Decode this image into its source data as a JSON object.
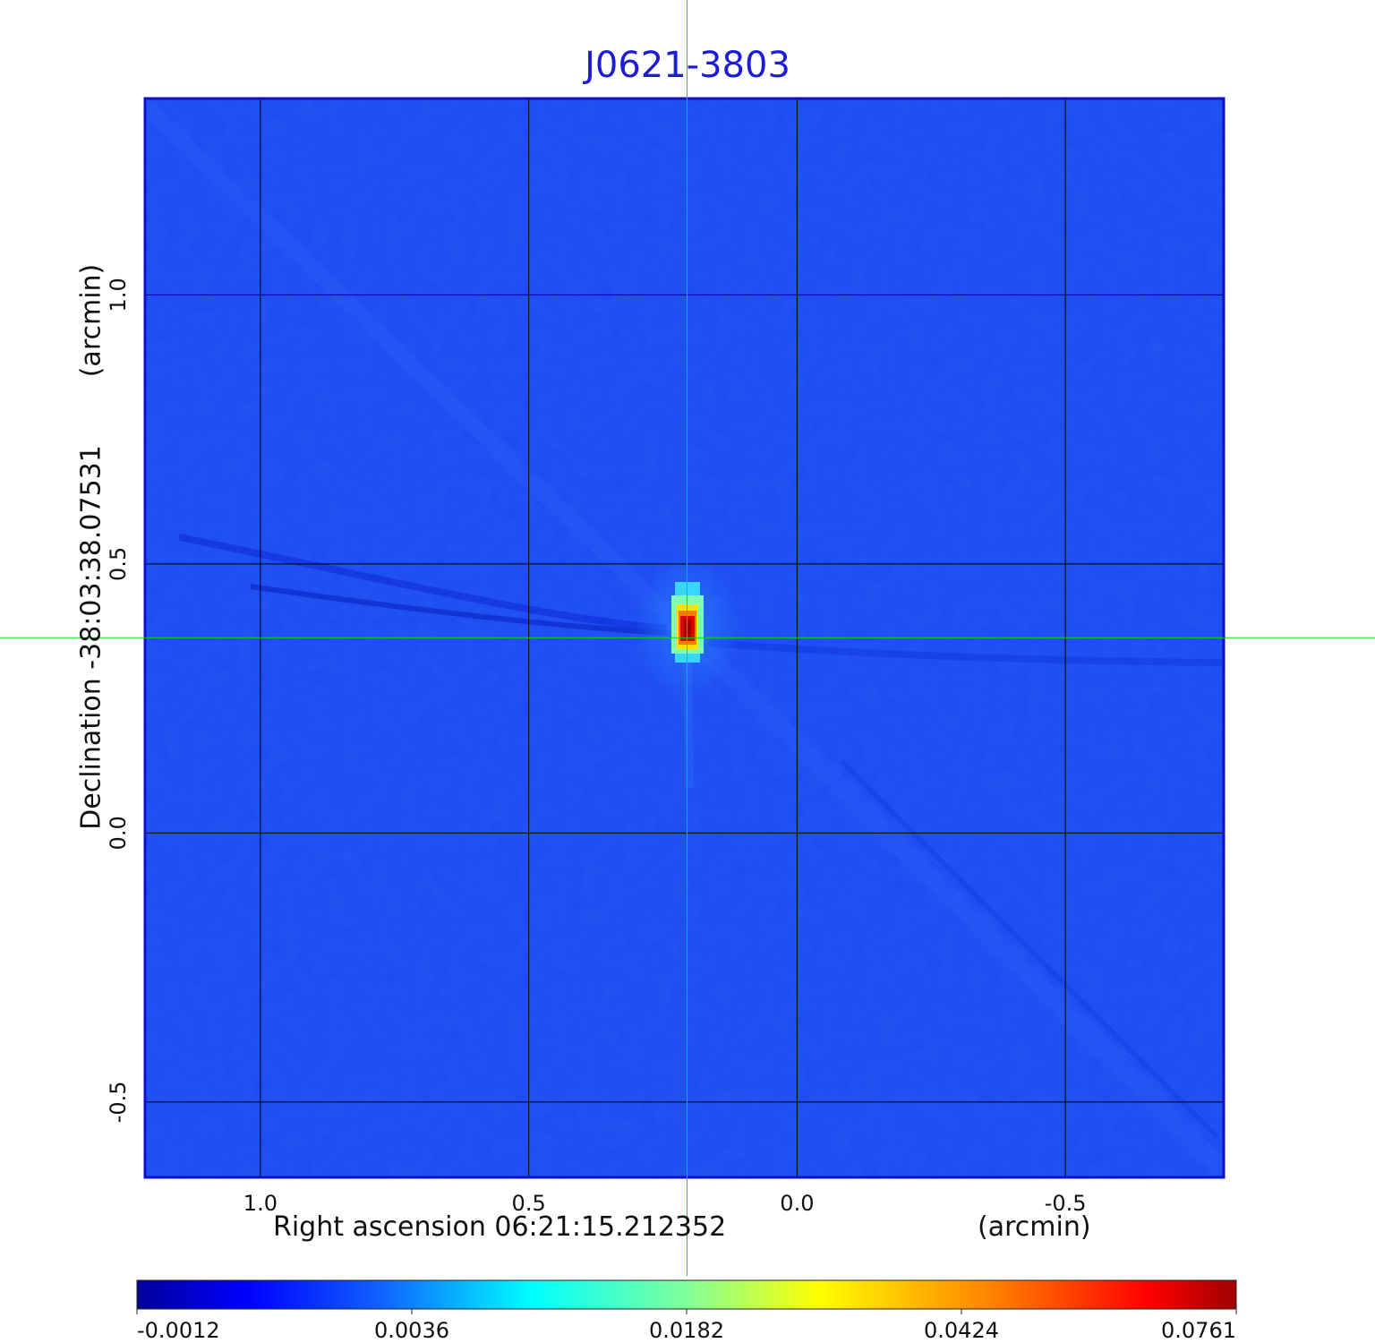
{
  "title": "J0621-3803",
  "chart_data": {
    "type": "heatmap",
    "title": "J0621-3803",
    "xlabel": "Right ascension  06:21:15.212352",
    "xunit": "(arcmin)",
    "ylabel": "Declination  -38:03:38.07531",
    "yunit": "(arcmin)",
    "xlim": [
      1.215,
      -0.795
    ],
    "ylim": [
      -0.64,
      1.365
    ],
    "x_ticks": [
      1.0,
      0.5,
      0.0,
      -0.5
    ],
    "x_tick_labels": [
      "1.0",
      "0.5",
      "0.0",
      "-0.5"
    ],
    "y_ticks": [
      1.0,
      0.5,
      0.0,
      -0.5
    ],
    "y_tick_labels": [
      "1.0",
      "0.5",
      "0.0",
      "-0.5"
    ],
    "grid": true,
    "source_peak": {
      "x": 0.205,
      "y": 0.37,
      "value": 0.0761
    },
    "crosshair": {
      "x": 0.205,
      "y": 0.363
    },
    "colorbar": {
      "orientation": "horizontal",
      "colormap": "jet",
      "ticks": [
        "-0.0012",
        "0.0036",
        "0.0182",
        "0.0424",
        "0.0761"
      ]
    }
  },
  "colors": {
    "title": "#1b1bd8",
    "frame": "#1010c8",
    "grid": "#000000",
    "crosshair": "#00e000",
    "background_field": "#1c4cf2"
  }
}
